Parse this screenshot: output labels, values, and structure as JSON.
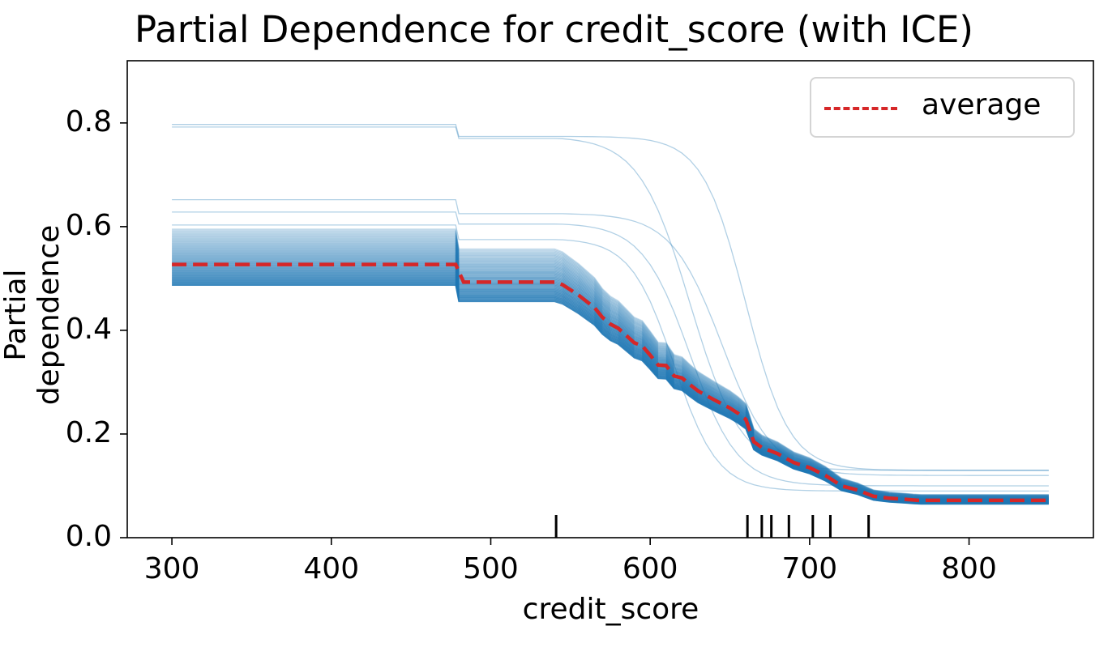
{
  "chart_data": {
    "type": "line",
    "title": "Partial Dependence for credit_score (with ICE)",
    "xlabel": "credit_score",
    "ylabel": "Partial dependence",
    "xlim": [
      272,
      878
    ],
    "ylim": [
      0,
      0.92
    ],
    "xticks": [
      300,
      400,
      500,
      600,
      700,
      800
    ],
    "yticks": [
      0.0,
      0.2,
      0.4,
      0.6,
      0.8
    ],
    "ytick_labels": [
      "0.0",
      "0.2",
      "0.4",
      "0.6",
      "0.8"
    ],
    "legend": {
      "position": "top-right",
      "entries": [
        "average"
      ]
    },
    "x": [
      300,
      478,
      483,
      540,
      545,
      555,
      560,
      565,
      570,
      575,
      580,
      585,
      590,
      595,
      600,
      605,
      610,
      615,
      620,
      625,
      630,
      640,
      650,
      655,
      660,
      665,
      670,
      680,
      690,
      700,
      710,
      720,
      730,
      740,
      750,
      760,
      768,
      800,
      850
    ],
    "series": [
      {
        "name": "average",
        "style": "dashed",
        "color": "#d62728",
        "values": [
          0.527,
          0.527,
          0.493,
          0.493,
          0.488,
          0.468,
          0.456,
          0.444,
          0.425,
          0.412,
          0.404,
          0.39,
          0.376,
          0.37,
          0.352,
          0.333,
          0.332,
          0.312,
          0.308,
          0.295,
          0.283,
          0.266,
          0.25,
          0.24,
          0.228,
          0.185,
          0.174,
          0.162,
          0.145,
          0.135,
          0.12,
          0.1,
          0.092,
          0.08,
          0.076,
          0.074,
          0.072,
          0.072,
          0.072
        ]
      }
    ],
    "ice": {
      "color": "#1f77b4",
      "count": 52,
      "curves": [
        {
          "a": 0.797,
          "b": 0.774,
          "c": 0.13,
          "mid": 660,
          "w": 30
        },
        {
          "a": 0.792,
          "b": 0.77,
          "c": 0.13,
          "mid": 625,
          "w": 35
        },
        {
          "a": 0.652,
          "b": 0.625,
          "c": 0.12,
          "mid": 645,
          "w": 35
        },
        {
          "a": 0.628,
          "b": 0.605,
          "c": 0.1,
          "mid": 625,
          "w": 33
        },
        {
          "a": 0.603,
          "b": 0.575,
          "c": 0.09,
          "mid": 615,
          "w": 30
        }
      ],
      "band": {
        "top": 0.595,
        "bottom": 0.487,
        "lines": 47,
        "end_top": 0.083,
        "end_bottom": 0.065
      }
    },
    "rug": [
      541,
      661,
      670,
      676,
      687,
      702,
      713,
      737
    ]
  }
}
